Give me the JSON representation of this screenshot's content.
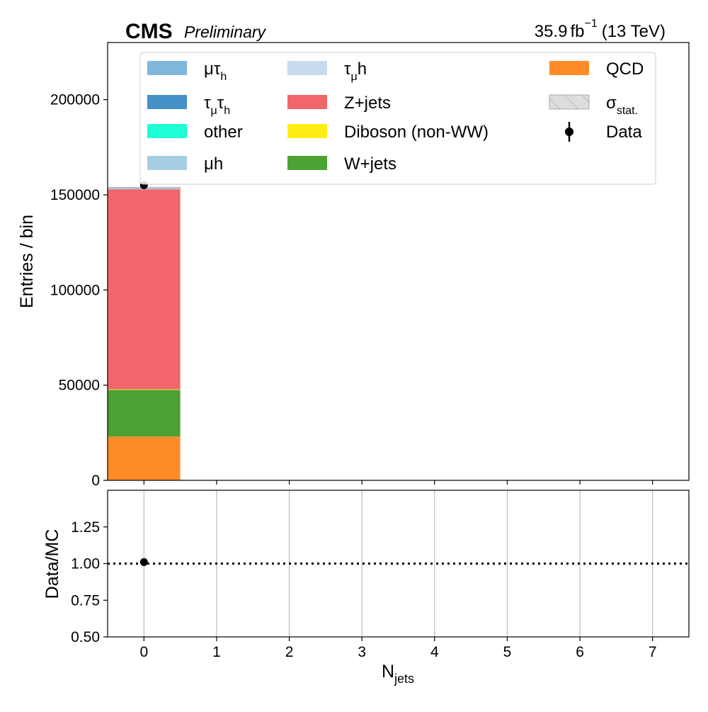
{
  "header": {
    "experiment": "CMS",
    "status": "Preliminary",
    "lumi_value": "35.9",
    "lumi_unit": "fb",
    "lumi_exp": "−1",
    "energy": "(13 TeV)"
  },
  "chart_data": [
    {
      "type": "bar",
      "subtype": "stacked-histogram",
      "panel": "main",
      "xlabel_main": "N",
      "xlabel_sub": "jets",
      "ylabel": "Entries / bin",
      "x": [
        0,
        1,
        2,
        3,
        4,
        5,
        6,
        7
      ],
      "xlim": [
        -0.5,
        7.5
      ],
      "ylim": [
        0,
        230000
      ],
      "yticks": [
        0,
        50000,
        100000,
        150000,
        200000
      ],
      "ytick_labels": [
        "0",
        "50000",
        "100000",
        "150000",
        "200000"
      ],
      "xticks": [
        0,
        1,
        2,
        3,
        4,
        5,
        6,
        7
      ],
      "xtick_labels": [
        "0",
        "1",
        "2",
        "3",
        "4",
        "5",
        "6",
        "7"
      ],
      "grid": false,
      "legend_position": "top",
      "series": [
        {
          "name": "QCD",
          "color": "#ff8c28",
          "values": [
            23000,
            0,
            0,
            0,
            0,
            0,
            0,
            0
          ]
        },
        {
          "name": "W+jets",
          "color": "#4ca232",
          "values": [
            24500,
            0,
            0,
            0,
            0,
            0,
            0,
            0
          ]
        },
        {
          "name": "Diboson (non-WW)",
          "color": "#ffee16",
          "values": [
            300,
            0,
            0,
            0,
            0,
            0,
            0,
            0
          ]
        },
        {
          "name": "Z+jets",
          "color": "#f0666a",
          "values": [
            105000,
            0,
            0,
            0,
            0,
            0,
            0,
            0
          ]
        },
        {
          "name": "τ_μh",
          "color": "#c6dbef",
          "values": [
            200,
            0,
            0,
            0,
            0,
            0,
            0,
            0
          ]
        },
        {
          "name": "μh",
          "color": "#a6cee3",
          "values": [
            200,
            0,
            0,
            0,
            0,
            0,
            0,
            0
          ]
        },
        {
          "name": "other",
          "color": "#1fffd5",
          "values": [
            100,
            0,
            0,
            0,
            0,
            0,
            0,
            0
          ]
        },
        {
          "name": "τ_μτ_h",
          "color": "#4591c8",
          "values": [
            100,
            0,
            0,
            0,
            0,
            0,
            0,
            0
          ]
        },
        {
          "name": "μτ_h",
          "color": "#7fb6dc",
          "values": [
            100,
            0,
            0,
            0,
            0,
            0,
            0,
            0
          ]
        }
      ],
      "stat_uncertainty": {
        "name": "σ_stat.",
        "color": "#dddddd",
        "values": [
          400,
          0,
          0,
          0,
          0,
          0,
          0,
          0
        ]
      },
      "data": {
        "name": "Data",
        "color": "#000000",
        "x": [
          0
        ],
        "y": [
          155000
        ],
        "yerr": [
          394
        ]
      }
    },
    {
      "type": "scatter",
      "panel": "ratio",
      "ylabel": "Data/MC",
      "x": [
        0
      ],
      "y": [
        1.01
      ],
      "xlim": [
        -0.5,
        7.5
      ],
      "ylim": [
        0.5,
        1.5
      ],
      "yticks": [
        0.5,
        0.75,
        1.0,
        1.25
      ],
      "ytick_labels": [
        "0.50",
        "0.75",
        "1.00",
        "1.25"
      ],
      "reference_line": 1.0,
      "grid": "x"
    }
  ],
  "legend": {
    "entries": [
      {
        "key": "mutauh",
        "main": "μτ",
        "sub": "h",
        "kind": "patch",
        "color": "#7fb6dc"
      },
      {
        "key": "taumutauh",
        "main": "τ",
        "sub": "μ",
        "main2": "τ",
        "sub2": "h",
        "kind": "patch",
        "color": "#4591c8"
      },
      {
        "key": "other",
        "main": "other",
        "kind": "patch",
        "color": "#1fffd5"
      },
      {
        "key": "muh",
        "main": "μh",
        "kind": "patch",
        "color": "#a6cee3"
      },
      {
        "key": "taumuh",
        "main": "τ",
        "sub": "μ",
        "main2": "h",
        "kind": "patch",
        "color": "#c6dbef"
      },
      {
        "key": "zjets",
        "main": "Z+jets",
        "kind": "patch",
        "color": "#f0666a"
      },
      {
        "key": "diboson",
        "main": "Diboson (non-WW)",
        "kind": "patch",
        "color": "#ffee16"
      },
      {
        "key": "wjets",
        "main": "W+jets",
        "kind": "patch",
        "color": "#4ca232"
      },
      {
        "key": "qcd",
        "main": "QCD",
        "kind": "patch",
        "color": "#ff8c28"
      },
      {
        "key": "stat",
        "main": "σ",
        "sub": "stat.",
        "kind": "hatch",
        "color": "#dddddd"
      },
      {
        "key": "data",
        "main": "Data",
        "kind": "marker",
        "color": "#000000"
      }
    ]
  }
}
